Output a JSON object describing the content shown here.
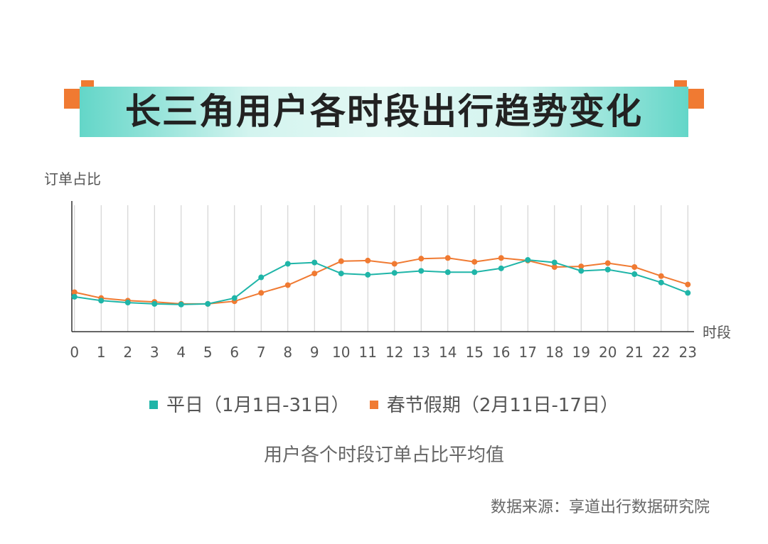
{
  "title": "长三角用户各时段出行趋势变化",
  "subtitle": "用户各个时段订单占比平均值",
  "source": "数据来源：享道出行数据研究院",
  "colors": {
    "weekday": "#1fb5a8",
    "holiday": "#f07a32",
    "banner_edge": "#63d6c8",
    "deco": "#f07a32",
    "grid": "#cccccc",
    "axis": "#333333"
  },
  "chart_data": {
    "type": "line",
    "ylabel": "订单占比",
    "xlabel": "时段",
    "x": [
      "0",
      "1",
      "2",
      "3",
      "4",
      "5",
      "6",
      "7",
      "8",
      "9",
      "10",
      "11",
      "12",
      "13",
      "14",
      "15",
      "16",
      "17",
      "18",
      "19",
      "20",
      "21",
      "22",
      "23"
    ],
    "ylim": [
      0,
      100
    ],
    "grid": "vertical",
    "legend": "bottom",
    "series": [
      {
        "name": "平日（1月1日-31日）",
        "color": "#1fb5a8",
        "values": [
          27,
          24,
          22.5,
          21.5,
          21,
          21.5,
          26,
          42,
          52.5,
          53.5,
          45,
          44,
          45.5,
          47,
          46,
          46,
          49,
          55.5,
          53.5,
          47,
          48,
          44.5,
          38,
          30
        ]
      },
      {
        "name": "春节假期（2月11日-17日）",
        "color": "#f07a32",
        "values": [
          30.5,
          26,
          24,
          23,
          21.5,
          21.5,
          23.5,
          30,
          36,
          45,
          54.5,
          55,
          52.5,
          56.5,
          57,
          54,
          57,
          55,
          50,
          50.5,
          53,
          50,
          43,
          36.5
        ]
      }
    ]
  }
}
